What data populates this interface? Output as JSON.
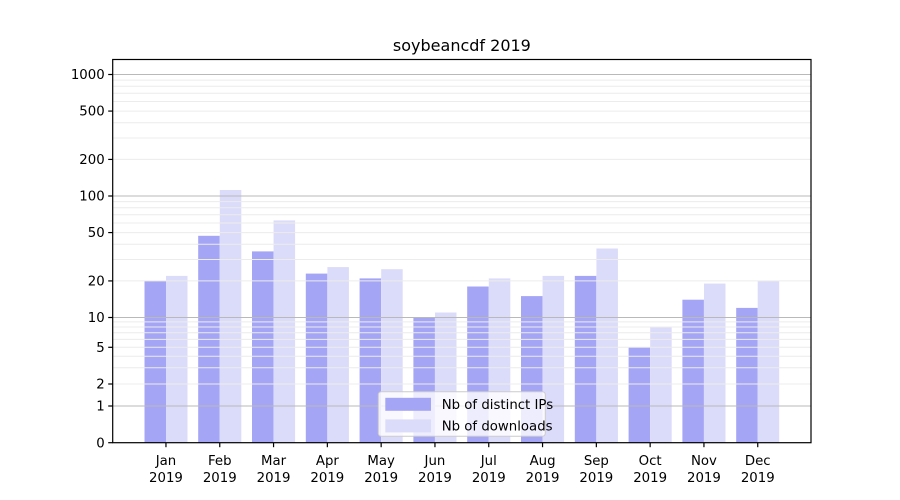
{
  "chart_data": {
    "type": "bar",
    "title": "soybeancdf 2019",
    "categories": [
      "Jan",
      "Feb",
      "Mar",
      "Apr",
      "May",
      "Jun",
      "Jul",
      "Aug",
      "Sep",
      "Oct",
      "Nov",
      "Dec"
    ],
    "category_year": "2019",
    "series": [
      {
        "name": "Nb of distinct IPs",
        "color": "#a5a5f5",
        "values": [
          20,
          47,
          35,
          23,
          21,
          10,
          18,
          15,
          22,
          5,
          14,
          12
        ]
      },
      {
        "name": "Nb of downloads",
        "color": "#dbdbfa",
        "values": [
          22,
          112,
          63,
          26,
          25,
          11,
          21,
          22,
          37,
          8,
          19,
          20
        ]
      }
    ],
    "yticks": [
      0,
      1,
      2,
      5,
      10,
      20,
      50,
      100,
      200,
      500,
      1000
    ],
    "ylim": [
      0,
      1000
    ],
    "yscale": "log-like (compressed linear segment below 10, linear 0-1)",
    "grid": true,
    "legend_position": "bottom-center",
    "colors": {
      "major_grid": "#b9b9b9",
      "minor_grid": "#ececec",
      "spine": "#000000",
      "legend_border": "#cccccc",
      "legend_background": "rgba(255,255,255,0.8)"
    }
  }
}
